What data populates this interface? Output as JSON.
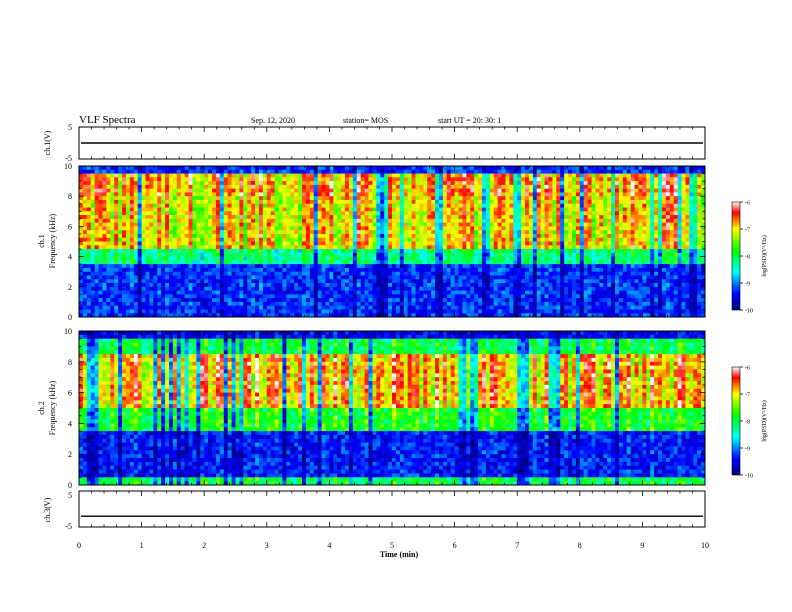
{
  "header": {
    "title": "VLF Spectra",
    "date": "Sep. 12, 2020",
    "station": "station= MOS",
    "start_time": "start  UT =   20: 30: 1"
  },
  "chart_data": {
    "type": "heatmap",
    "xlabel": "Time  (min)",
    "xlim": [
      0,
      10
    ],
    "xticks": [
      "0",
      "1",
      "2",
      "3",
      "4",
      "5",
      "6",
      "7",
      "8",
      "9",
      "10"
    ],
    "panels": [
      {
        "id": "ch1-voltage",
        "kind": "line",
        "ylabel": "ch.1(V)",
        "ylim": [
          -5,
          5
        ],
        "yticks": [
          "5",
          "-5"
        ],
        "signal_level": 0
      },
      {
        "id": "ch1-spectrogram",
        "kind": "heatmap",
        "ylabel_top": "ch.1",
        "ylabel": "Frequency  (kHz)",
        "ylim": [
          0,
          10
        ],
        "yticks": [
          "0",
          "2",
          "4",
          "6",
          "8",
          "10"
        ],
        "colorbar": {
          "label": "log(PSD)(V²/Hz)",
          "range": [
            -10,
            -6
          ],
          "ticks": [
            "-6",
            "-7",
            "-8",
            "-9",
            "-10"
          ]
        }
      },
      {
        "id": "ch2-spectrogram",
        "kind": "heatmap",
        "ylabel_top": "ch.2",
        "ylabel": "Frequency  (kHz)",
        "ylim": [
          0,
          10
        ],
        "yticks": [
          "0",
          "2",
          "4",
          "6",
          "8",
          "10"
        ],
        "colorbar": {
          "label": "log(PSD)(V²/Hz)",
          "range": [
            -10,
            -6
          ],
          "ticks": [
            "-6",
            "-7",
            "-8",
            "-9",
            "-10"
          ]
        }
      },
      {
        "id": "ch3-voltage",
        "kind": "line",
        "ylabel": "ch.3(V)",
        "ylim": [
          -5,
          5
        ],
        "yticks": [
          "5",
          "-5"
        ],
        "signal_level": -2
      }
    ]
  }
}
